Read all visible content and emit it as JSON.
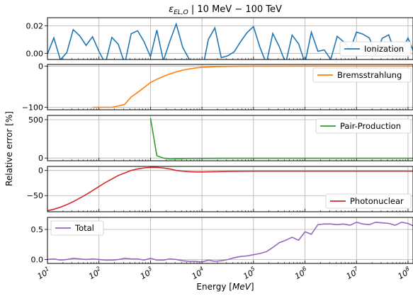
{
  "title_main": "ε",
  "title_sub": "EL,O",
  "title_rest": " | 10 MeV − 100 TeV",
  "xlabel": "Energy [MeV]",
  "xlabel_prefix": "Energy [",
  "xlabel_unit": "MeV",
  "xlabel_suffix": "]",
  "ylabel": "Relative error [%]",
  "chart_data": [
    {
      "type": "line",
      "xscale": "log",
      "xlim": [
        10,
        125000000
      ],
      "ylim": [
        -0.0045,
        0.026
      ],
      "grid": true,
      "legend": "lower right",
      "color": "#1f77b4",
      "yticks": [
        0.0,
        0.02
      ],
      "yticklabels": [
        "0.00",
        "0.02"
      ],
      "series": [
        {
          "name": "Ionization",
          "x": [
            10,
            13.3,
            17.8,
            23.7,
            31.6,
            42.2,
            56.2,
            75,
            100,
            133,
            178,
            237,
            316,
            422,
            562,
            750,
            1000,
            1330,
            1780,
            2370,
            3160,
            4220,
            5620,
            7500,
            10000,
            13300,
            17800,
            23700,
            31600,
            42200,
            56200,
            75000,
            100000,
            133000,
            178000,
            237000,
            316000,
            422000,
            562000,
            750000,
            1000000,
            1330000,
            1780000,
            2370000,
            3160000,
            4220000,
            5620000,
            7500000,
            10000000,
            13300000,
            17800000,
            23700000,
            31600000,
            42200000,
            56200000,
            75000000,
            100000000,
            125000000
          ],
          "y": [
            -0.0005,
            0.0113,
            -0.0048,
            0.0005,
            0.0173,
            0.0128,
            0.0058,
            0.0121,
            0.0014,
            -0.0075,
            0.0116,
            0.0066,
            -0.0077,
            0.0143,
            0.0165,
            0.0085,
            -0.0025,
            0.017,
            -0.0055,
            0.0087,
            0.0214,
            0.0044,
            -0.0042,
            -0.011,
            -0.0135,
            0.0102,
            0.0186,
            -0.0032,
            -0.0018,
            0.0011,
            0.0085,
            0.0151,
            0.0195,
            0.0045,
            -0.0075,
            0.0145,
            0.0049,
            -0.0073,
            0.0133,
            0.007,
            -0.007,
            0.0154,
            0.0015,
            0.0025,
            -0.0045,
            0.0124,
            0.0084,
            0.0024,
            0.0155,
            0.014,
            0.0112,
            -0.0008,
            0.011,
            0.0135,
            0.0002,
            0.0019,
            0.0112,
            0.0023
          ]
        }
      ]
    },
    {
      "type": "line",
      "xscale": "log",
      "xlim": [
        10,
        125000000
      ],
      "ylim": [
        -106,
        4
      ],
      "grid": true,
      "legend": "upper right",
      "color": "#ff7f0e",
      "yticks": [
        0,
        -100
      ],
      "yticklabels": [
        "0",
        "−100"
      ],
      "series": [
        {
          "name": "Bremsstrahlung",
          "x": [
            75,
            100,
            133,
            178,
            237,
            316,
            422,
            562,
            750,
            1000,
            1330,
            1780,
            2370,
            3160,
            4220,
            5620,
            7500,
            10000,
            17800,
            31600,
            56200,
            100000,
            1000000,
            10000000,
            125000000
          ],
          "y": [
            -100,
            -100,
            -100,
            -100,
            -97,
            -93,
            -75,
            -64,
            -52,
            -40,
            -32,
            -25,
            -19,
            -14,
            -10,
            -7,
            -4.5,
            -3,
            -1.5,
            -0.8,
            -0.4,
            -0.2,
            0,
            0,
            0
          ]
        }
      ]
    },
    {
      "type": "line",
      "xscale": "log",
      "xlim": [
        10,
        125000000
      ],
      "ylim": [
        -35,
        555
      ],
      "grid": true,
      "legend": "upper right",
      "color": "#2ca02c",
      "yticks": [
        0,
        500
      ],
      "yticklabels": [
        "0",
        "500"
      ],
      "series": [
        {
          "name": "Pair-Production",
          "x": [
            1000,
            1330,
            1780,
            2370,
            3160,
            4220,
            5620,
            7500,
            10000,
            31600,
            100000,
            1000000,
            10000000,
            125000000
          ],
          "y": [
            520,
            30,
            0,
            -12,
            -10,
            -8,
            -5,
            -4,
            -4,
            -3,
            -3,
            -3,
            -3,
            -3
          ]
        }
      ]
    },
    {
      "type": "line",
      "xscale": "log",
      "xlim": [
        10,
        125000000
      ],
      "ylim": [
        -82,
        8
      ],
      "grid": true,
      "legend": "lower right",
      "color": "#d62728",
      "yticks": [
        0,
        -50
      ],
      "yticklabels": [
        "0",
        "−50"
      ],
      "series": [
        {
          "name": "Photonuclear",
          "x": [
            10,
            13.3,
            17.8,
            23.7,
            31.6,
            42.2,
            56.2,
            75,
            100,
            133,
            178,
            237,
            316,
            422,
            562,
            750,
            1000,
            1330,
            1780,
            2370,
            3160,
            4220,
            5620,
            7500,
            10000,
            17800,
            31600,
            100000,
            1000000,
            10000000,
            125000000
          ],
          "y": [
            -80,
            -77,
            -73,
            -68,
            -62,
            -55,
            -48,
            -40,
            -32,
            -24,
            -17,
            -10,
            -5,
            0,
            3,
            5,
            6,
            6,
            5,
            3,
            0,
            -1.5,
            -2.5,
            -3,
            -3,
            -2.5,
            -2,
            -1.5,
            -1.5,
            -1.5,
            -1.5
          ]
        }
      ]
    },
    {
      "type": "line",
      "xscale": "log",
      "xlim": [
        10,
        125000000
      ],
      "ylim": [
        -0.065,
        0.7
      ],
      "grid": true,
      "legend": "upper left",
      "color": "#9467bd",
      "yticks": [
        0.0,
        0.5
      ],
      "yticklabels": [
        "0.0",
        "0.5"
      ],
      "series": [
        {
          "name": "Total",
          "x": [
            10,
            13.3,
            17.8,
            23.7,
            31.6,
            42.2,
            56.2,
            75,
            100,
            133,
            178,
            237,
            316,
            422,
            562,
            750,
            1000,
            1330,
            1780,
            2370,
            3160,
            4220,
            5620,
            7500,
            10000,
            13300,
            17800,
            23700,
            31600,
            42200,
            56200,
            75000,
            100000,
            133000,
            178000,
            237000,
            316000,
            422000,
            562000,
            750000,
            1000000,
            1330000,
            1780000,
            2370000,
            3160000,
            4220000,
            5620000,
            7500000,
            10000000,
            13300000,
            17800000,
            23700000,
            31600000,
            42200000,
            56200000,
            75000000,
            100000000,
            125000000
          ],
          "y": [
            0.0,
            0.01,
            -0.01,
            0.0,
            0.02,
            0.01,
            0.0,
            0.01,
            0.0,
            -0.01,
            -0.01,
            0.0,
            0.02,
            0.01,
            0.01,
            -0.01,
            0.02,
            -0.01,
            -0.01,
            0.01,
            0.0,
            -0.02,
            -0.03,
            -0.03,
            -0.04,
            -0.01,
            -0.03,
            -0.02,
            0.0,
            0.03,
            0.05,
            0.06,
            0.08,
            0.1,
            0.13,
            0.2,
            0.28,
            0.32,
            0.37,
            0.32,
            0.46,
            0.42,
            0.58,
            0.59,
            0.59,
            0.58,
            0.59,
            0.57,
            0.62,
            0.59,
            0.58,
            0.62,
            0.61,
            0.6,
            0.57,
            0.62,
            0.6,
            0.56
          ]
        }
      ]
    }
  ],
  "xticks": [
    {
      "base": "10",
      "exp": "1",
      "value": 10
    },
    {
      "base": "10",
      "exp": "2",
      "value": 100
    },
    {
      "base": "10",
      "exp": "3",
      "value": 1000
    },
    {
      "base": "10",
      "exp": "4",
      "value": 10000
    },
    {
      "base": "10",
      "exp": "5",
      "value": 100000
    },
    {
      "base": "10",
      "exp": "6",
      "value": 1000000
    },
    {
      "base": "10",
      "exp": "7",
      "value": 10000000
    },
    {
      "base": "10",
      "exp": "8",
      "value": 100000000
    }
  ]
}
